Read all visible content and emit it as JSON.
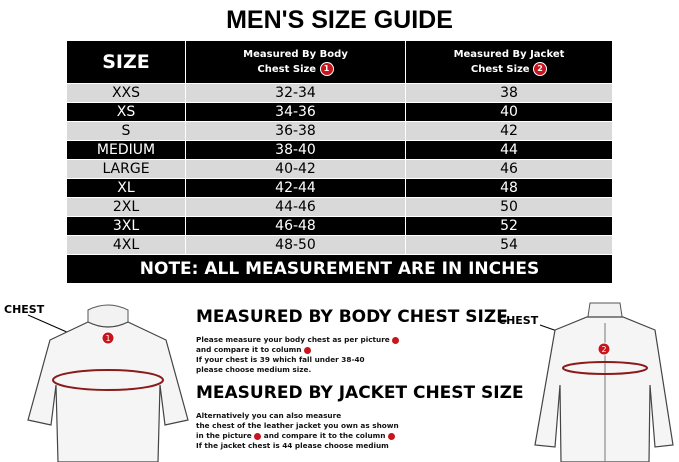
{
  "title": "MEN'S SIZE GUIDE",
  "table": {
    "headers": {
      "size": "SIZE",
      "body_line1": "Measured By Body",
      "body_line2": "Chest Size",
      "body_badge": "1",
      "jacket_line1": "Measured By Jacket",
      "jacket_line2": "Chest Size",
      "jacket_badge": "2"
    },
    "rows": [
      {
        "size": "XXS",
        "body": "32-34",
        "jacket": "38"
      },
      {
        "size": "XS",
        "body": "34-36",
        "jacket": "40"
      },
      {
        "size": "S",
        "body": "36-38",
        "jacket": "42"
      },
      {
        "size": "MEDIUM",
        "body": "38-40",
        "jacket": "44"
      },
      {
        "size": "LARGE",
        "body": "40-42",
        "jacket": "46"
      },
      {
        "size": "XL",
        "body": "42-44",
        "jacket": "48"
      },
      {
        "size": "2XL",
        "body": "44-46",
        "jacket": "50"
      },
      {
        "size": "3XL",
        "body": "46-48",
        "jacket": "52"
      },
      {
        "size": "4XL",
        "body": "48-50",
        "jacket": "54"
      }
    ],
    "note": "NOTE: ALL MEASUREMENT ARE IN INCHES"
  },
  "body_section": {
    "heading": "MEASURED BY BODY CHEST SIZE",
    "lines": [
      "Please measure your body chest as per picture",
      "and compare it to column",
      "If your chest is 39 which fall under 38-40",
      "please choose medium size."
    ]
  },
  "jacket_section": {
    "heading": "MEASURED BY JACKET CHEST SIZE",
    "lines": [
      "Alternatively you can also measure",
      "the chest of the leather jacket you own as shown",
      "in the picture",
      "and compare it to the column",
      "If the jacket chest is 44 please choose medium"
    ]
  },
  "figures": {
    "left_label": "CHEST",
    "left_marker": "1",
    "right_label": "CHEST",
    "right_marker": "2"
  },
  "colors": {
    "accent": "#c8141c",
    "dark_row": "#000000",
    "light_row": "#d9d9d9"
  }
}
